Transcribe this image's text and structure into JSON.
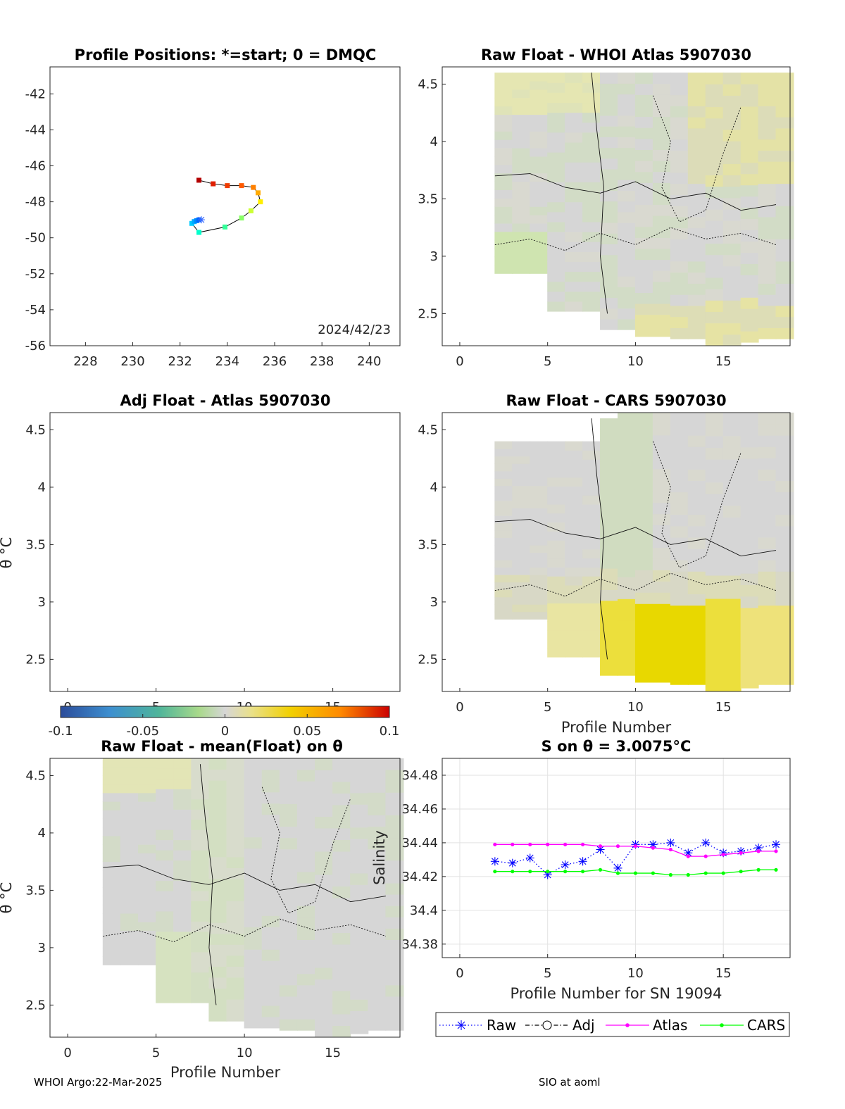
{
  "footer": {
    "left": "WHOI Argo:22-Mar-2025",
    "right": "SIO at aoml"
  },
  "colors": {
    "raw": "#0000ff",
    "adj": "#000000",
    "atlas": "#ff00ff",
    "cars": "#00ff00",
    "field": "#d6d6d6"
  },
  "chart_data": [
    {
      "id": "positions",
      "type": "line",
      "title": "Profile Positions: *=start; 0 = DMQC",
      "annotation": "2024/42/23",
      "xlim": [
        226.5,
        241.3
      ],
      "ylim": [
        -56,
        -40.5
      ],
      "xticks": [
        228,
        230,
        232,
        234,
        236,
        238,
        240
      ],
      "yticks": [
        -42,
        -44,
        -46,
        -48,
        -50,
        -52,
        -54,
        -56
      ],
      "points": [
        {
          "x": 232.8,
          "y": -46.8,
          "c": "#b30000"
        },
        {
          "x": 233.4,
          "y": -47.0,
          "c": "#e01e00"
        },
        {
          "x": 234.0,
          "y": -47.1,
          "c": "#f03c00"
        },
        {
          "x": 234.6,
          "y": -47.1,
          "c": "#ff5a00"
        },
        {
          "x": 235.1,
          "y": -47.2,
          "c": "#ff8000"
        },
        {
          "x": 235.3,
          "y": -47.5,
          "c": "#ffaa00"
        },
        {
          "x": 235.4,
          "y": -48.0,
          "c": "#ffee00"
        },
        {
          "x": 235.0,
          "y": -48.5,
          "c": "#ccff33"
        },
        {
          "x": 234.6,
          "y": -48.9,
          "c": "#88ff66"
        },
        {
          "x": 233.9,
          "y": -49.4,
          "c": "#33ff99"
        },
        {
          "x": 232.8,
          "y": -49.7,
          "c": "#00ffcc"
        },
        {
          "x": 232.5,
          "y": -49.2,
          "c": "#00ccff"
        },
        {
          "x": 232.6,
          "y": -49.1,
          "c": "#00aaff"
        },
        {
          "x": 232.7,
          "y": -49.05,
          "c": "#0088ff"
        },
        {
          "x": 232.8,
          "y": -49.0,
          "c": "#0066ff"
        }
      ],
      "start": {
        "x": 232.9,
        "y": -49.0
      }
    },
    {
      "id": "raw-whoi",
      "type": "heatmap",
      "title": "Raw Float - WHOI Atlas  5907030",
      "xlim": [
        -1,
        18.8
      ],
      "ylim": [
        2.22,
        4.65
      ],
      "xticks": [
        0,
        5,
        10,
        15
      ],
      "yticks": [
        4.5,
        4,
        3.5,
        3,
        2.5
      ],
      "xlabel": "",
      "ylabel": "",
      "bottoms": [
        2.85,
        2.85,
        2.85,
        2.52,
        2.52,
        2.52,
        2.36,
        2.36,
        2.3,
        2.3,
        2.28,
        2.28,
        2.22,
        2.22,
        2.25,
        2.28,
        2.28
      ],
      "top": 4.6
    },
    {
      "id": "adj-atlas",
      "type": "heatmap",
      "title": "Adj Float - Atlas  5907030",
      "xlim": [
        -1,
        18.8
      ],
      "ylim": [
        2.22,
        4.65
      ],
      "xticks": [
        0,
        5,
        10,
        15
      ],
      "yticks": [
        4.5,
        4,
        3.5,
        3,
        2.5
      ],
      "xlabel": "",
      "ylabel": "θ °C"
    },
    {
      "id": "raw-cars",
      "type": "heatmap",
      "title": "Raw Float - CARS  5907030",
      "xlim": [
        -1,
        18.8
      ],
      "ylim": [
        2.22,
        4.65
      ],
      "xticks": [
        0,
        5,
        10,
        15
      ],
      "yticks": [
        4.5,
        4,
        3.5,
        3,
        2.5
      ],
      "xlabel": "Profile Number",
      "ylabel": "",
      "bottoms": [
        2.85,
        2.85,
        2.85,
        2.52,
        2.52,
        2.52,
        2.36,
        2.36,
        2.3,
        2.3,
        2.28,
        2.28,
        2.22,
        2.22,
        2.25,
        2.28,
        2.28
      ],
      "tops": [
        4.4,
        4.4,
        4.4,
        4.4,
        4.4,
        4.4,
        4.6,
        4.65,
        4.65,
        4.65,
        4.65,
        4.65,
        4.65,
        4.65,
        4.65,
        4.65,
        4.65
      ]
    },
    {
      "id": "colorbar",
      "type": "colorbar",
      "range": [
        -0.1,
        0.1
      ],
      "ticks": [
        "-0.1",
        "-0.05",
        "0",
        "0.05",
        "0.1"
      ]
    },
    {
      "id": "raw-mean",
      "type": "heatmap",
      "title": "Raw Float - mean(Float) on θ",
      "xlim": [
        -1,
        18.8
      ],
      "ylim": [
        2.22,
        4.65
      ],
      "xticks": [
        0,
        5,
        10,
        15
      ],
      "yticks": [
        4.5,
        4,
        3.5,
        3,
        2.5
      ],
      "xlabel": "Profile Number",
      "ylabel": "θ °C",
      "bottoms": [
        2.85,
        2.85,
        2.85,
        2.52,
        2.52,
        2.52,
        2.36,
        2.36,
        2.3,
        2.3,
        2.28,
        2.28,
        2.22,
        2.22,
        2.25,
        2.28,
        2.28
      ],
      "top": 4.65
    },
    {
      "id": "salinity",
      "type": "line",
      "title": "S on θ = 3.0075°C",
      "xlabel": "Profile Number for SN 19094",
      "ylabel": "Salinity",
      "xlim": [
        -1,
        18.8
      ],
      "ylim": [
        34.372,
        34.49
      ],
      "xticks": [
        0,
        5,
        10,
        15
      ],
      "yticks": [
        "34.48",
        "34.46",
        "34.44",
        "34.42",
        "34.4",
        "34.38"
      ],
      "ytick_values": [
        34.48,
        34.46,
        34.44,
        34.42,
        34.4,
        34.38
      ],
      "grid": true,
      "x": [
        2,
        3,
        4,
        5,
        6,
        7,
        8,
        9,
        10,
        11,
        12,
        13,
        14,
        15,
        16,
        17,
        18
      ],
      "series": [
        {
          "name": "Raw",
          "style": "star-dotted",
          "values": [
            34.429,
            34.428,
            34.431,
            34.421,
            34.427,
            34.429,
            34.436,
            34.425,
            34.439,
            34.439,
            34.44,
            34.434,
            34.44,
            34.434,
            34.435,
            34.437,
            34.439
          ]
        },
        {
          "name": "Atlas",
          "style": "dot-solid",
          "values": [
            34.439,
            34.439,
            34.439,
            34.439,
            34.439,
            34.439,
            34.438,
            34.438,
            34.438,
            34.437,
            34.436,
            34.432,
            34.432,
            34.433,
            34.434,
            34.435,
            34.435
          ]
        },
        {
          "name": "CARS",
          "style": "dot-solid",
          "values": [
            34.423,
            34.423,
            34.423,
            34.423,
            34.423,
            34.423,
            34.424,
            34.422,
            34.422,
            34.422,
            34.421,
            34.421,
            34.422,
            34.422,
            34.423,
            34.424,
            34.424
          ]
        }
      ],
      "legend": [
        {
          "name": "Raw",
          "marker": "star",
          "line": "dotted"
        },
        {
          "name": "Adj",
          "marker": "circle",
          "line": "dashdot"
        },
        {
          "name": "Atlas",
          "marker": "dot",
          "line": "solid"
        },
        {
          "name": "CARS",
          "marker": "dot",
          "line": "solid"
        }
      ]
    }
  ]
}
